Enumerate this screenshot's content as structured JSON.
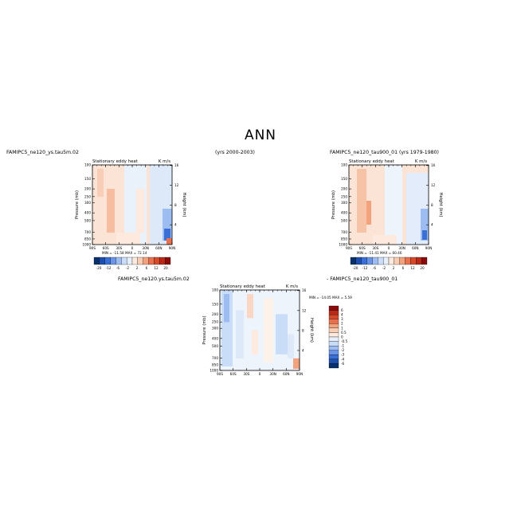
{
  "figure": {
    "title": "ANN",
    "captions": {
      "left_case": "FAMIPC5_ne120_ys.tau5m.02",
      "center_years": "(yrs 2000-2003)",
      "right_case_years": "FAMIPC5_ne120_tau900_01 (yrs 1979-1980)",
      "diff_left": "FAMIPC5_ne120.ys.tau5m.02",
      "diff_right": "- FAMIPC5_ne120_tau900_01"
    }
  },
  "chart_data": [
    {
      "id": "panel-model",
      "type": "heatmap",
      "title": "Stationary eddy heat",
      "units": "K m/s",
      "ylabel": "Pressure (mb)",
      "ylabel_right": "Height (km)",
      "x_ticks": [
        "90S",
        "60S",
        "30S",
        "0",
        "30N",
        "60N",
        "90N"
      ],
      "y_ticks": [
        "100",
        "150",
        "200",
        "250",
        "300",
        "400",
        "500",
        "700",
        "850",
        "1000"
      ],
      "y_right_ticks": [
        "16",
        "12",
        "8",
        "4"
      ],
      "stats_text": "MIN = -11.58   MAX =  72.14",
      "colorbar": {
        "labels": [
          "-20",
          "-12",
          "-6",
          "-2",
          "2",
          "6",
          "12",
          "20"
        ],
        "colors": [
          "#08306b",
          "#1c4fb0",
          "#3a6fd8",
          "#6a95e6",
          "#9dbdf2",
          "#c9dcf8",
          "#e6effb",
          "#fde9dd",
          "#f9cdb3",
          "#f3a27e",
          "#e8704f",
          "#d64a2b",
          "#b82a17",
          "#8b0b0b"
        ]
      }
    },
    {
      "id": "panel-obs",
      "type": "heatmap",
      "title": "Stationary eddy heat",
      "units": "K m/s",
      "ylabel": "Pressure (mb)",
      "ylabel_right": "Height (km)",
      "x_ticks": [
        "90S",
        "60S",
        "30S",
        "0",
        "30N",
        "60N",
        "90N"
      ],
      "y_ticks": [
        "100",
        "150",
        "200",
        "250",
        "300",
        "400",
        "500",
        "700",
        "850",
        "1000"
      ],
      "y_right_ticks": [
        "16",
        "12",
        "8",
        "4"
      ],
      "stats_text": "MIN = -11.41   MAX =  60.46",
      "colorbar": {
        "labels": [
          "-20",
          "-12",
          "-6",
          "-2",
          "2",
          "6",
          "12",
          "20"
        ],
        "colors": [
          "#08306b",
          "#1c4fb0",
          "#3a6fd8",
          "#6a95e6",
          "#9dbdf2",
          "#c9dcf8",
          "#e6effb",
          "#fde9dd",
          "#f9cdb3",
          "#f3a27e",
          "#e8704f",
          "#d64a2b",
          "#b82a17",
          "#8b0b0b"
        ]
      }
    },
    {
      "id": "panel-diff",
      "type": "heatmap",
      "title": "Stationary eddy heat",
      "units": "K m/s",
      "ylabel": "Pressure (mb)",
      "ylabel_right": "Height (km)",
      "x_ticks": [
        "90S",
        "60S",
        "30S",
        "0",
        "30N",
        "60N",
        "90N"
      ],
      "y_ticks": [
        "100",
        "150",
        "200",
        "250",
        "300",
        "400",
        "500",
        "700",
        "850",
        "1000"
      ],
      "y_right_ticks": [
        "16",
        "12",
        "8",
        "4"
      ],
      "stats_text": "MIN = -14.05   MAX =   5.59",
      "colorbar": {
        "labels": [
          "6",
          "4",
          "3",
          "2",
          "1",
          "0.5",
          "0",
          "-0.5",
          "-1",
          "-2",
          "-3",
          "-4",
          "-6"
        ],
        "colors": [
          "#8b0b0b",
          "#b82a17",
          "#d64a2b",
          "#e8704f",
          "#f3a27e",
          "#f9cdb3",
          "#fde9dd",
          "#e6effb",
          "#c9dcf8",
          "#9dbdf2",
          "#6a95e6",
          "#3a6fd8",
          "#1c4fb0",
          "#08306b"
        ]
      }
    }
  ]
}
